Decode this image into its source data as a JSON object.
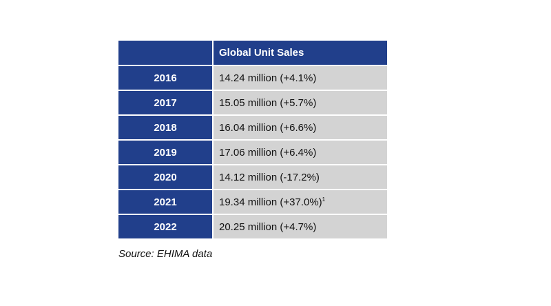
{
  "table": {
    "header": {
      "corner": "",
      "column": "Global Unit Sales"
    },
    "rows": [
      {
        "year": "2016",
        "value": "14.24 million (+4.1%)",
        "note": ""
      },
      {
        "year": "2017",
        "value": "15.05 million (+5.7%)",
        "note": ""
      },
      {
        "year": "2018",
        "value": "16.04 million (+6.6%)",
        "note": ""
      },
      {
        "year": "2019",
        "value": "17.06 million (+6.4%)",
        "note": ""
      },
      {
        "year": "2020",
        "value": "14.12 million (-17.2%)",
        "note": ""
      },
      {
        "year": "2021",
        "value": "19.34 million (+37.0%)",
        "note": "1"
      },
      {
        "year": "2022",
        "value": "20.25 million (+4.7%)",
        "note": ""
      }
    ]
  },
  "source": "Source: EHIMA data",
  "colors": {
    "header_bg": "#213f8b",
    "cell_bg": "#d3d3d3"
  }
}
